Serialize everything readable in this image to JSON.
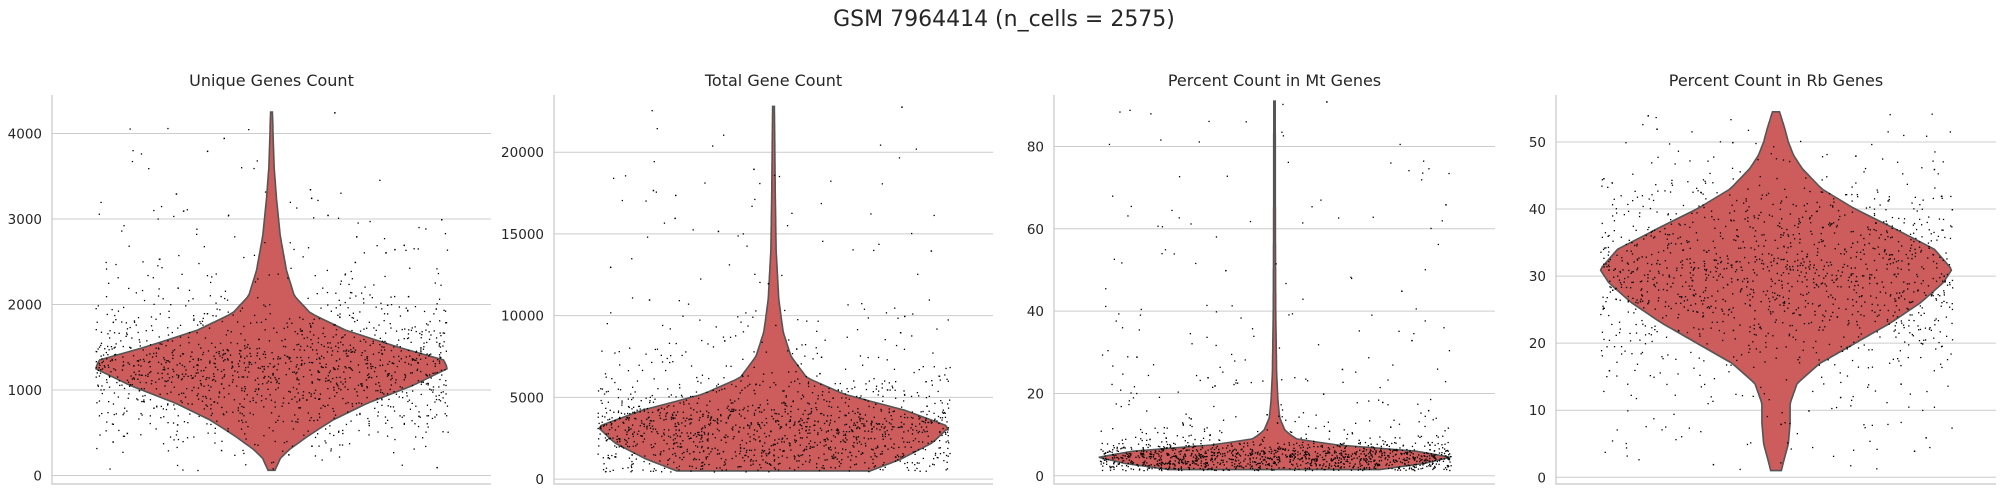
{
  "title": "GSM 7964414 (n_cells = 2575)",
  "n_cells": 2575,
  "colors": {
    "violin_fill": "#cd5c5c",
    "violin_edge": "#555555",
    "points": "#000000",
    "grid": "#cccccc"
  },
  "chart_data": [
    {
      "type": "violin",
      "title": "Unique Genes Count",
      "ylim": [
        -100,
        4450
      ],
      "yticks": [
        0,
        1000,
        2000,
        3000,
        4000
      ],
      "ytick_labels": [
        "0",
        "1000",
        "2000",
        "3000",
        "4000"
      ],
      "grid": true,
      "distribution": {
        "median": 1300,
        "min": 60,
        "max": 4250,
        "density_peak": 1300
      },
      "density": [
        [
          60,
          0.02
        ],
        [
          200,
          0.05
        ],
        [
          300,
          0.1
        ],
        [
          450,
          0.2
        ],
        [
          650,
          0.35
        ],
        [
          850,
          0.55
        ],
        [
          1050,
          0.8
        ],
        [
          1250,
          1.0
        ],
        [
          1350,
          0.98
        ],
        [
          1500,
          0.72
        ],
        [
          1700,
          0.42
        ],
        [
          1900,
          0.22
        ],
        [
          2100,
          0.13
        ],
        [
          2400,
          0.085
        ],
        [
          2800,
          0.05
        ],
        [
          3200,
          0.03
        ],
        [
          3600,
          0.015
        ],
        [
          4250,
          0.005
        ]
      ],
      "jitter_samples": [
        1300,
        1250,
        1400,
        1150,
        1500,
        1350,
        1200,
        1600,
        1100,
        1450,
        1700,
        1000,
        1800,
        900,
        2000,
        800,
        2200,
        700,
        2500,
        600,
        2800,
        500,
        3000,
        400,
        3300,
        350,
        3800,
        4250,
        3950,
        3350,
        3250,
        2700,
        2650,
        3050,
        3100,
        300,
        250,
        100,
        1900,
        2100
      ]
    },
    {
      "type": "violin",
      "title": "Total Gene Count",
      "ylim": [
        -300,
        23500
      ],
      "yticks": [
        0,
        5000,
        10000,
        15000,
        20000
      ],
      "ytick_labels": [
        "0",
        "5000",
        "10000",
        "15000",
        "20000"
      ],
      "grid": true,
      "distribution": {
        "median": 3200,
        "min": 500,
        "max": 22800,
        "density_peak": 3200
      },
      "density": [
        [
          500,
          0.55
        ],
        [
          1200,
          0.72
        ],
        [
          2200,
          0.9
        ],
        [
          3200,
          1.0
        ],
        [
          4200,
          0.75
        ],
        [
          5200,
          0.4
        ],
        [
          6200,
          0.19
        ],
        [
          7500,
          0.1
        ],
        [
          9000,
          0.055
        ],
        [
          11000,
          0.03
        ],
        [
          14000,
          0.015
        ],
        [
          17500,
          0.01
        ],
        [
          22800,
          0.005
        ]
      ],
      "jitter_samples": [
        3200,
        2800,
        3600,
        2400,
        4000,
        2000,
        4500,
        1600,
        5000,
        1200,
        5500,
        900,
        6000,
        700,
        6500,
        7000,
        7500,
        8000,
        8500,
        9000,
        10000,
        11000,
        12000,
        13000,
        14000,
        15200,
        16000,
        17400,
        17700,
        19000,
        22800,
        3000,
        3400,
        2600,
        3800,
        4200,
        1800,
        2200
      ]
    },
    {
      "type": "violin",
      "title": "Percent Count in Mt Genes",
      "ylim": [
        -2,
        92.5
      ],
      "yticks": [
        0,
        20,
        40,
        60,
        80
      ],
      "ytick_labels": [
        "0",
        "20",
        "40",
        "60",
        "80"
      ],
      "grid": true,
      "distribution": {
        "median": 4.5,
        "min": 1.5,
        "max": 91,
        "density_peak": 4.5
      },
      "density": [
        [
          1.5,
          0.6
        ],
        [
          3,
          0.85
        ],
        [
          4.5,
          1.0
        ],
        [
          6,
          0.8
        ],
        [
          7.5,
          0.35
        ],
        [
          9,
          0.12
        ],
        [
          11,
          0.06
        ],
        [
          14,
          0.03
        ],
        [
          18,
          0.02
        ],
        [
          25,
          0.012
        ],
        [
          40,
          0.007
        ],
        [
          60,
          0.005
        ],
        [
          91,
          0.004
        ]
      ],
      "jitter_samples": [
        4.5,
        3.5,
        5.5,
        3,
        6,
        2.5,
        7,
        2,
        8,
        9,
        10,
        11,
        12,
        13,
        14,
        15,
        16,
        18,
        20,
        22,
        24,
        26,
        29,
        33,
        45,
        50,
        66,
        91,
        4,
        5,
        6.5,
        3.8
      ]
    },
    {
      "type": "violin",
      "title": "Percent Count in Rb Genes",
      "ylim": [
        -1,
        57
      ],
      "yticks": [
        0,
        10,
        20,
        30,
        40,
        50
      ],
      "ytick_labels": [
        "0",
        "10",
        "20",
        "30",
        "40",
        "50"
      ],
      "grid": true,
      "distribution": {
        "median": 30,
        "min": 1,
        "max": 54.5,
        "density_peak": 31
      },
      "density": [
        [
          1,
          0.03
        ],
        [
          3,
          0.05
        ],
        [
          5,
          0.07
        ],
        [
          8,
          0.08
        ],
        [
          11,
          0.08
        ],
        [
          14,
          0.12
        ],
        [
          17,
          0.25
        ],
        [
          20,
          0.45
        ],
        [
          23,
          0.65
        ],
        [
          26,
          0.82
        ],
        [
          29,
          0.95
        ],
        [
          31,
          1.0
        ],
        [
          34,
          0.9
        ],
        [
          37,
          0.68
        ],
        [
          40,
          0.45
        ],
        [
          43,
          0.26
        ],
        [
          46,
          0.15
        ],
        [
          48,
          0.1
        ],
        [
          50,
          0.07
        ],
        [
          52,
          0.05
        ],
        [
          54.5,
          0.02
        ]
      ],
      "jitter_samples": [
        31,
        30,
        32,
        28,
        34,
        26,
        36,
        24,
        38,
        22,
        40,
        20,
        42,
        18,
        44,
        16,
        46,
        14,
        48,
        12,
        50,
        10,
        8,
        6,
        4,
        2,
        52,
        54,
        29,
        33,
        35,
        27,
        25,
        37
      ]
    }
  ]
}
